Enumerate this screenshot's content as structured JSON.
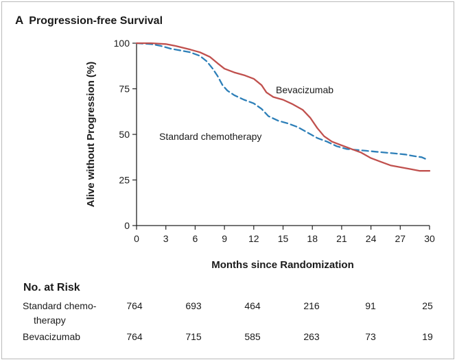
{
  "panel": {
    "letter": "A",
    "title": "Progression-free Survival"
  },
  "chart_data": {
    "type": "line",
    "title": "Progression-free Survival",
    "xlabel": "Months since Randomization",
    "ylabel": "Alive without Progression (%)",
    "xlim": [
      0,
      30
    ],
    "ylim": [
      0,
      100
    ],
    "x_ticks": [
      0,
      3,
      6,
      9,
      12,
      15,
      18,
      21,
      24,
      27,
      30
    ],
    "y_ticks": [
      0,
      25,
      50,
      75,
      100
    ],
    "grid": false,
    "annotations": [
      "Bevacizumab",
      "Standard chemotherapy"
    ],
    "series": [
      {
        "name": "Standard chemotherapy",
        "color": "#2d7fb8",
        "style": "dashed",
        "label_key": 1,
        "x": [
          0,
          1.5,
          2.5,
          3.5,
          4.5,
          5.5,
          6.5,
          7.2,
          7.8,
          8.3,
          8.8,
          9.3,
          10,
          11,
          12,
          12.8,
          13.5,
          14.5,
          15.5,
          16.5,
          17.5,
          18.5,
          19.5,
          20.5,
          21.5,
          22.5,
          23.5,
          24.5,
          25.5,
          26.5,
          27.5,
          28.5,
          29.2,
          29.8
        ],
        "y": [
          100,
          99.5,
          98.5,
          97,
          96,
          95,
          93,
          90,
          86,
          82,
          77,
          74,
          71.5,
          69,
          67,
          64,
          60,
          57.5,
          56,
          54,
          51,
          48,
          46,
          43.5,
          42,
          41.5,
          41,
          40.5,
          40,
          39.5,
          39,
          38,
          37.5,
          36
        ]
      },
      {
        "name": "Bevacizumab",
        "color": "#c0504d",
        "style": "solid",
        "label_key": 0,
        "x": [
          0,
          1.5,
          3,
          4,
          5.5,
          6.5,
          7.5,
          8.3,
          9,
          10,
          11,
          12,
          12.8,
          13.3,
          14,
          15,
          16,
          17,
          17.8,
          18.5,
          19.2,
          20,
          21,
          22,
          23,
          24,
          25,
          26,
          27,
          28,
          29,
          30
        ],
        "y": [
          100,
          100,
          99.5,
          98.5,
          96.5,
          95,
          92.5,
          89,
          86,
          84,
          82.5,
          80.5,
          77,
          73,
          70.5,
          69,
          66.5,
          63.5,
          59,
          53.5,
          49,
          46,
          44,
          42,
          40,
          37,
          35,
          33,
          32,
          31,
          30,
          30
        ]
      }
    ]
  },
  "risk_table": {
    "heading": "No. at Risk",
    "rows": [
      {
        "label_line1": "Standard chemo-",
        "label_line2": "therapy",
        "values": [
          "764",
          "693",
          "464",
          "216",
          "91",
          "25"
        ]
      },
      {
        "label_line1": "Bevacizumab",
        "label_line2": "",
        "values": [
          "764",
          "715",
          "585",
          "263",
          "73",
          "19"
        ]
      }
    ]
  }
}
